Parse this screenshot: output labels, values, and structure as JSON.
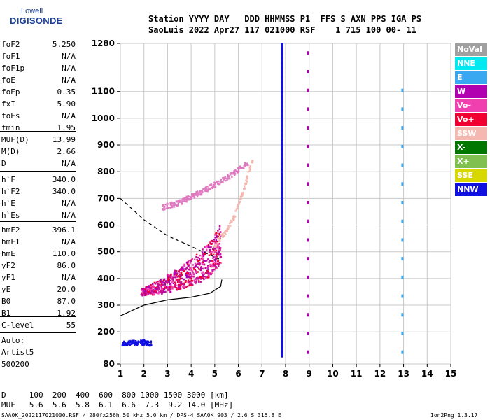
{
  "logo": {
    "line1": "Lowell",
    "line2": "DIGISONDE"
  },
  "header": {
    "line1": "Station YYYY DAY   DDD HHMMSS P1  FFS S AXN PPS IGA PS",
    "line2": "SaoLuis 2022 Apr27 117 021000 RSF    1 715 100 00- 11"
  },
  "params_group1": [
    {
      "label": "foF2",
      "value": "5.250"
    },
    {
      "label": "foF1",
      "value": "N/A"
    },
    {
      "label": "foF1p",
      "value": "N/A"
    },
    {
      "label": "foE",
      "value": "N/A"
    },
    {
      "label": "foEp",
      "value": "0.35"
    },
    {
      "label": "fxI",
      "value": "5.90"
    },
    {
      "label": "foEs",
      "value": "N/A"
    },
    {
      "label": "fmin",
      "value": "1.95"
    }
  ],
  "params_group2": [
    {
      "label": "MUF(D)",
      "value": "13.99"
    },
    {
      "label": "M(D)",
      "value": "2.66"
    },
    {
      "label": "D",
      "value": "N/A"
    }
  ],
  "params_group3": [
    {
      "label": "h`F",
      "value": "340.0"
    },
    {
      "label": "h`F2",
      "value": "340.0"
    },
    {
      "label": "h`E",
      "value": "N/A"
    },
    {
      "label": "h`Es",
      "value": "N/A"
    }
  ],
  "params_group4": [
    {
      "label": "hmF2",
      "value": "396.1"
    },
    {
      "label": "hmF1",
      "value": "N/A"
    },
    {
      "label": "hmE",
      "value": "110.0"
    },
    {
      "label": "yF2",
      "value": "86.0"
    },
    {
      "label": "yF1",
      "value": "N/A"
    },
    {
      "label": "yE",
      "value": "20.0"
    },
    {
      "label": "B0",
      "value": "87.0"
    },
    {
      "label": "B1",
      "value": "1.92"
    }
  ],
  "params_group5": [
    {
      "label": "C-level",
      "value": "55"
    }
  ],
  "auto": {
    "line1": "Auto:",
    "line2": "Artist5",
    "line3": "500200"
  },
  "legend": [
    {
      "label": "NoVal",
      "color": "#a0a0a0"
    },
    {
      "label": "NNE",
      "color": "#00e8f0"
    },
    {
      "label": "E",
      "color": "#3aa8f0"
    },
    {
      "label": "W",
      "color": "#b000b0"
    },
    {
      "label": "Vo-",
      "color": "#f040b0"
    },
    {
      "label": "Vo+",
      "color": "#f00030"
    },
    {
      "label": "SSW",
      "color": "#f5b8b0"
    },
    {
      "label": "X-",
      "color": "#007800"
    },
    {
      "label": "X+",
      "color": "#80c050"
    },
    {
      "label": "SSE",
      "color": "#d8d800"
    },
    {
      "label": "NNW",
      "color": "#1010e0"
    }
  ],
  "footer": {
    "d_row": "D     100  200  400  600  800 1000 1500 3000 [km]",
    "muf_row": "MUF   5.6  5.6  5.8  6.1  6.6  7.3  9.2 14.0 [MHz]",
    "file_line": "SAA0K_2022117021000.RSF / 280fx256h 50 kHz 5.0 km / DPS-4 SAA0K 903 / 2.6 S 315.8 E",
    "version": "Ion2Png 1.3.17"
  },
  "chart_data": {
    "type": "scatter",
    "title": "",
    "xlabel": "",
    "ylabel": "",
    "xlim": [
      1,
      15
    ],
    "ylim": [
      80,
      1280
    ],
    "x_ticks": [
      "1",
      "2",
      "3",
      "4",
      "5",
      "6",
      "7",
      "8",
      "9",
      "10",
      "11",
      "12",
      "13",
      "14",
      "15"
    ],
    "y_ticks": [
      "80",
      "200",
      "300",
      "400",
      "500",
      "600",
      "700",
      "800",
      "900",
      "1000",
      "1100",
      "1280"
    ],
    "y_tick_values": [
      80,
      200,
      300,
      400,
      500,
      600,
      700,
      800,
      900,
      1000,
      1100,
      1280
    ],
    "grid": true,
    "series": [
      {
        "name": "F2 O-trace",
        "color": "#c81090",
        "x": [
          1.9,
          2.3,
          2.7,
          3.1,
          3.5,
          3.9,
          4.3,
          4.7,
          5.0,
          5.25
        ],
        "y": [
          340,
          345,
          350,
          360,
          370,
          385,
          400,
          420,
          450,
          480
        ]
      },
      {
        "name": "F2 multihop",
        "color": "#e07ac0",
        "x": [
          2.8,
          3.2,
          3.6,
          4.0,
          4.4,
          4.8,
          5.2,
          5.6,
          6.0,
          6.4
        ],
        "y": [
          660,
          670,
          680,
          700,
          715,
          735,
          755,
          775,
          800,
          825
        ]
      },
      {
        "name": "X trace",
        "color": "#f5b8b0",
        "x": [
          5.0,
          5.4,
          5.8,
          6.2,
          6.6
        ],
        "y": [
          520,
          560,
          620,
          720,
          840
        ]
      },
      {
        "name": "low echoes",
        "color": "#1010e0",
        "x": [
          1.1,
          1.4,
          1.7,
          2.0,
          2.3
        ],
        "y": [
          150,
          152,
          151,
          153,
          150
        ]
      }
    ],
    "profile_solid": {
      "x": [
        1.0,
        2.0,
        3.0,
        4.0,
        4.8,
        5.25,
        5.3
      ],
      "y": [
        260,
        300,
        320,
        330,
        345,
        370,
        396
      ]
    },
    "profile_dashed": {
      "x": [
        1.0,
        1.5,
        2.0,
        2.5,
        3.0,
        3.5,
        4.0,
        4.5,
        5.0,
        5.25
      ],
      "y": [
        700,
        660,
        620,
        590,
        560,
        540,
        520,
        500,
        480,
        470
      ]
    },
    "vertical_interference": [
      7.85,
      8.95,
      12.95
    ]
  }
}
